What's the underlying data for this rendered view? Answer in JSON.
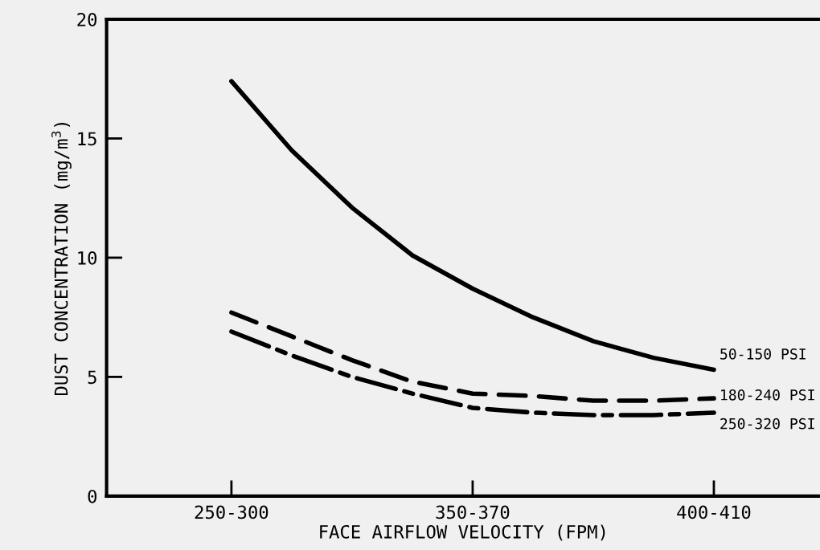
{
  "chart_data": {
    "type": "line",
    "xlabel": "FACE AIRFLOW VELOCITY (FPM)",
    "ylabel": "DUST CONCENTRATION (mg/m$^{3}$)",
    "categories": [
      "250-300",
      null,
      null,
      null,
      "350-370",
      null,
      null,
      null,
      "400-410"
    ],
    "ylim": [
      0,
      20
    ],
    "yticks": [
      0,
      5,
      10,
      15,
      20
    ],
    "grid": false,
    "legend": false,
    "marker": "none",
    "series": [
      {
        "name": "50-150 PSI",
        "color": "#000000",
        "line_style": "solid",
        "values": [
          17.4,
          14.5,
          12.1,
          10.1,
          8.7,
          7.5,
          6.5,
          5.8,
          5.3
        ]
      },
      {
        "name": "180-240 PSI",
        "color": "#000000",
        "line_style": "dashed",
        "values": [
          7.7,
          6.7,
          5.7,
          4.8,
          4.3,
          4.2,
          4.0,
          4.0,
          4.1
        ]
      },
      {
        "name": "250-320 PSI",
        "color": "#000000",
        "line_style": "dashdot",
        "values": [
          6.9,
          5.9,
          5.0,
          4.3,
          3.7,
          3.5,
          3.4,
          3.4,
          3.5
        ]
      }
    ]
  }
}
